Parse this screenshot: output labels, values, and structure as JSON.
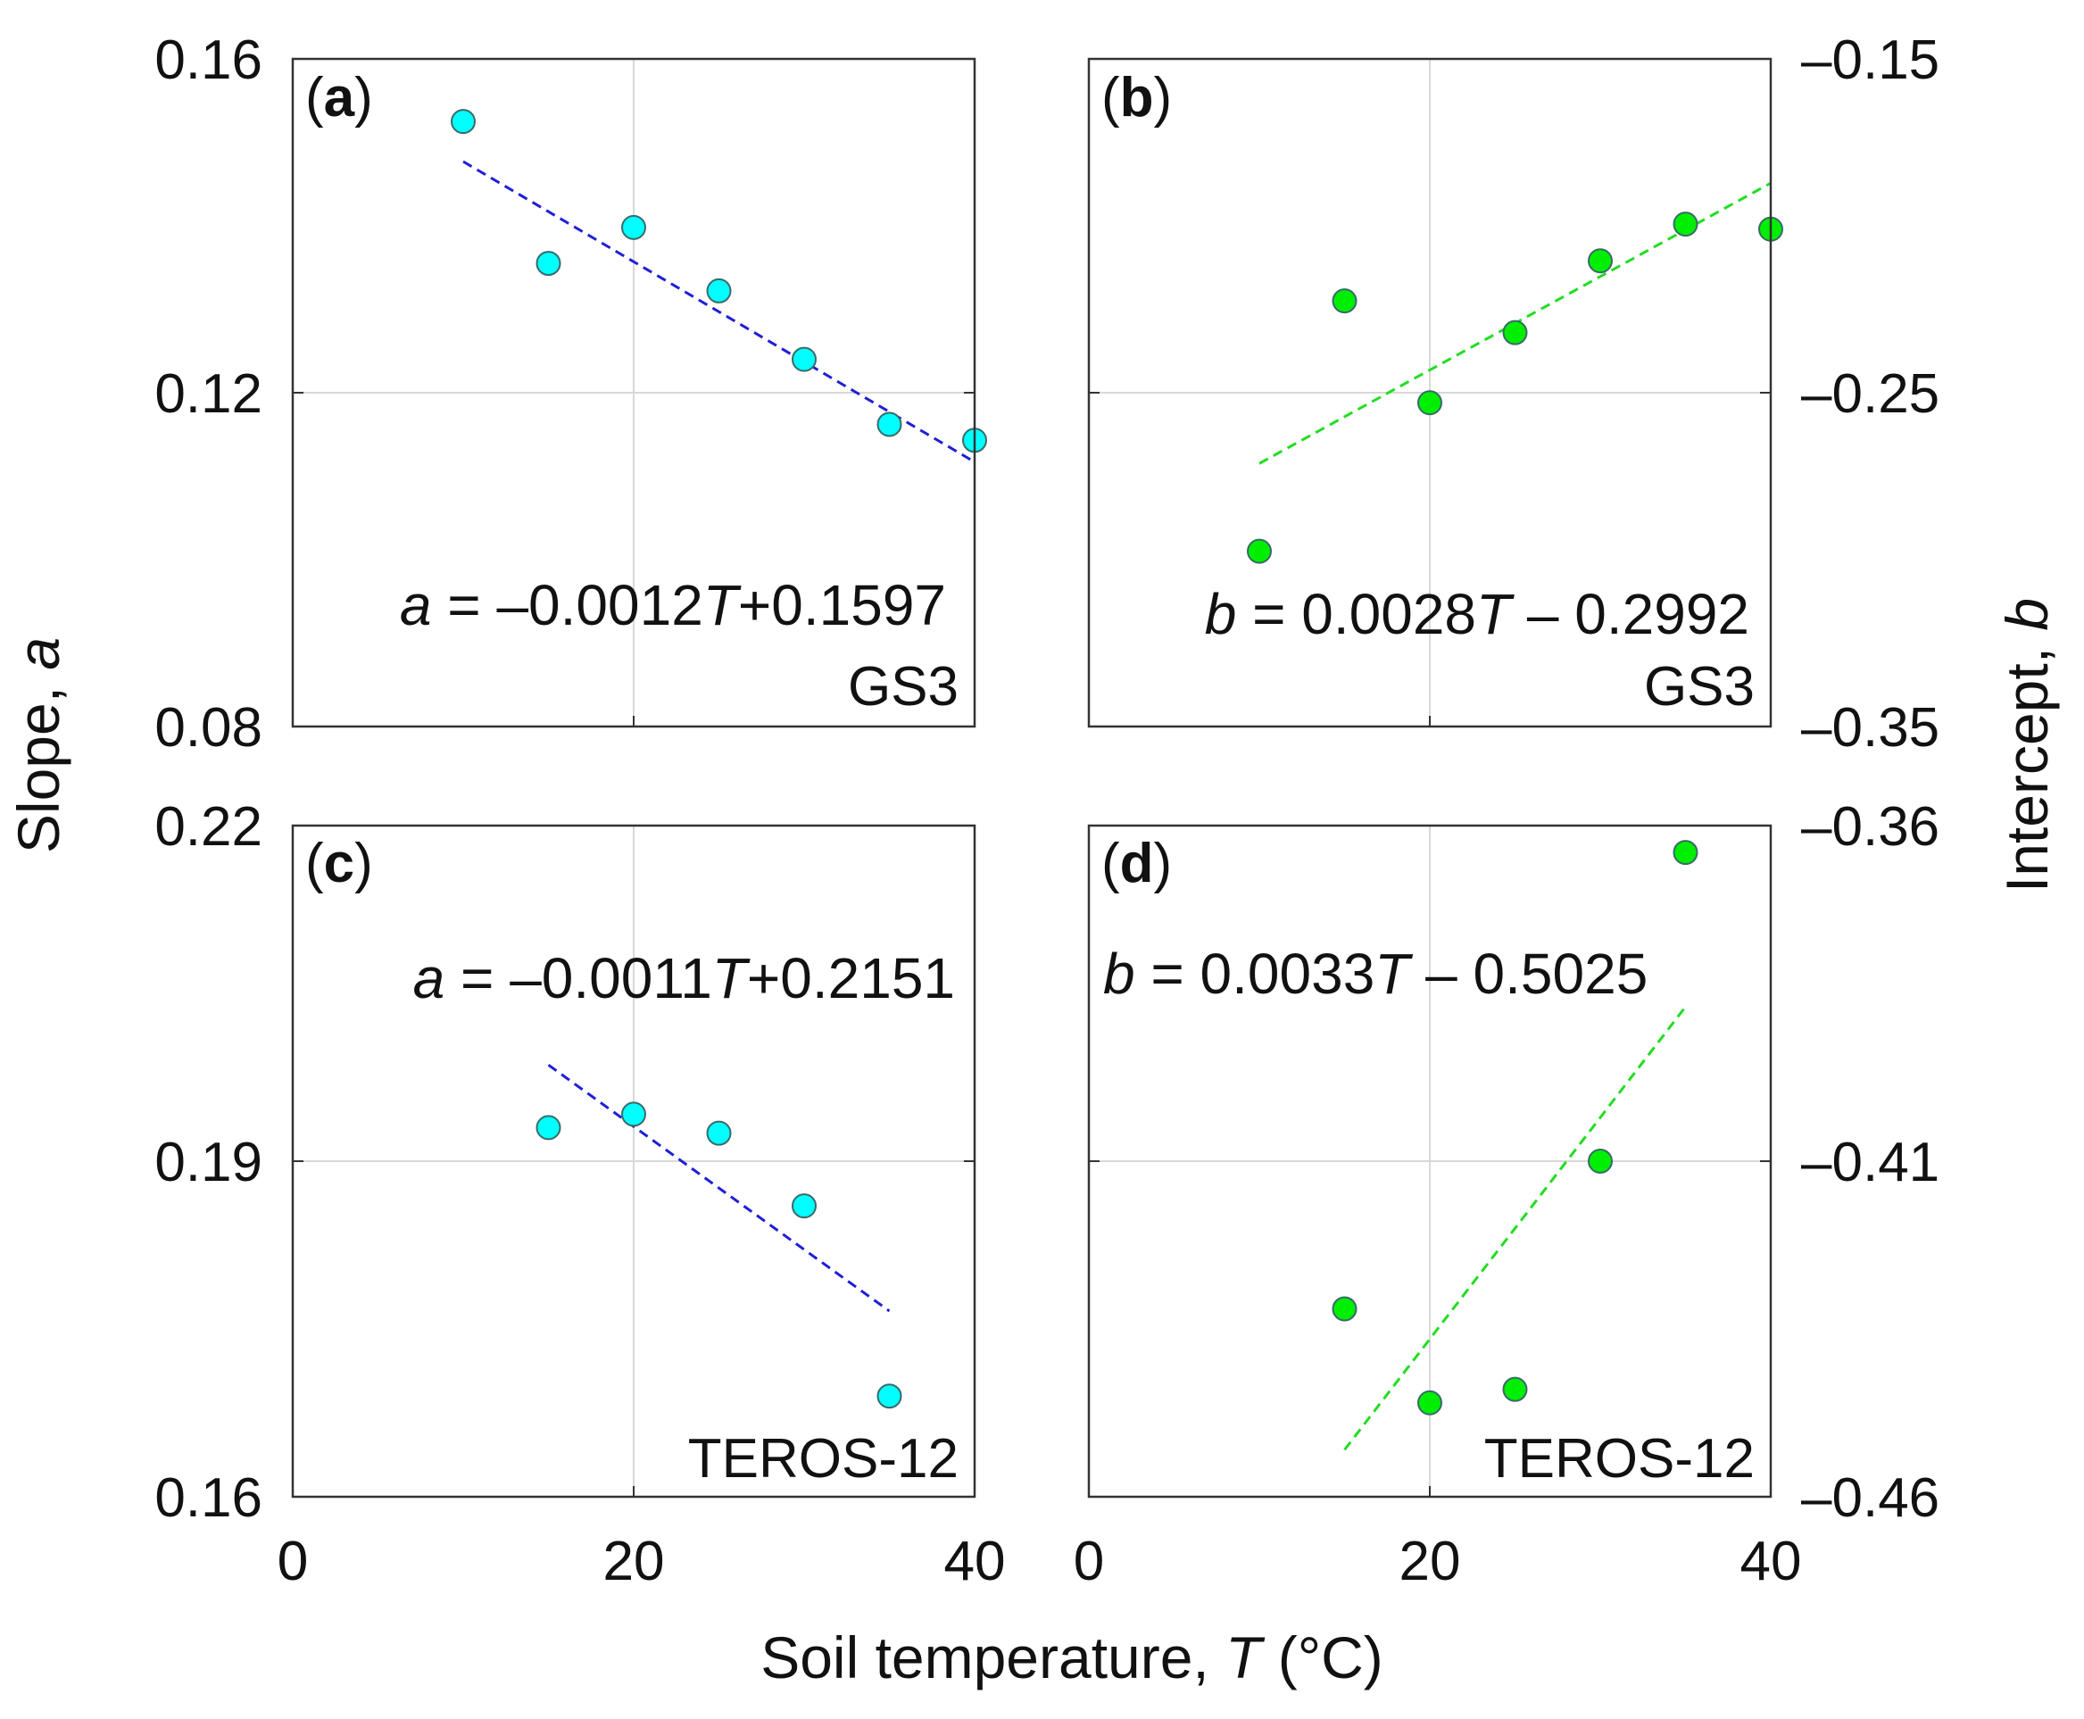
{
  "colors": {
    "slope_marker": "#00ffff",
    "intercept_marker": "#00ee00",
    "slope_fit_line": "#1f1fd8",
    "intercept_fit_line": "#22dd22",
    "marker_edge": "#3a6a6a",
    "axes": "#333333",
    "grid": "#d8d8d8"
  },
  "figure": {
    "xlabel_prefix": "Soil temperature, ",
    "xlabel_var": "T",
    "xlabel_suffix": " (°C)",
    "ylabel_left_prefix": "Slope, ",
    "ylabel_left_var": "a",
    "ylabel_right_prefix": "Intercept, ",
    "ylabel_right_var": "b"
  },
  "chart_data": [
    {
      "type": "scatter",
      "panel": "(a)",
      "panel_letter": "a",
      "sensor": "GS3",
      "equation": {
        "var": "a",
        "pre": " = –0.0012",
        "t": "T",
        "post": "+0.1597"
      },
      "xlim": [
        0,
        40
      ],
      "ylim": [
        0.08,
        0.16
      ],
      "xticks": [
        0,
        20,
        40
      ],
      "xtick_labels": [
        "0",
        "20",
        "40"
      ],
      "yticks": [
        0.08,
        0.12,
        0.16
      ],
      "ytick_labels": [
        "0.08",
        "0.12",
        "0.16"
      ],
      "ytick_side": "left",
      "grid": true,
      "x": [
        10,
        15,
        20,
        25,
        30,
        35,
        40
      ],
      "y": [
        0.1525,
        0.1355,
        0.1398,
        0.1322,
        0.124,
        0.1162,
        0.1143
      ],
      "fit": {
        "slope": -0.0012,
        "intercept": 0.1597,
        "x_range": [
          10,
          40
        ]
      }
    },
    {
      "type": "scatter",
      "panel": "(b)",
      "panel_letter": "b",
      "sensor": "GS3",
      "equation": {
        "var": "b",
        "pre": " = 0.0028",
        "t": "T",
        "post": " – 0.2992"
      },
      "xlim": [
        0,
        40
      ],
      "ylim": [
        -0.35,
        -0.15
      ],
      "xticks": [
        0,
        20,
        40
      ],
      "xtick_labels": [
        "",
        "",
        ""
      ],
      "yticks": [
        -0.35,
        -0.25,
        -0.15
      ],
      "ytick_labels": [
        "–0.35",
        "–0.25",
        "–0.15"
      ],
      "ytick_side": "right",
      "grid": true,
      "x": [
        10,
        15,
        20,
        25,
        30,
        35,
        40
      ],
      "y": [
        -0.2975,
        -0.2225,
        -0.253,
        -0.232,
        -0.2105,
        -0.1995,
        -0.201
      ],
      "fit": {
        "slope": 0.0028,
        "intercept": -0.2992,
        "x_range": [
          10,
          40
        ]
      }
    },
    {
      "type": "scatter",
      "panel": "(c)",
      "panel_letter": "c",
      "sensor": "TEROS-12",
      "equation": {
        "var": "a",
        "pre": " = –0.0011",
        "t": "T",
        "post": "+0.2151"
      },
      "xlim": [
        0,
        40
      ],
      "ylim": [
        0.16,
        0.22
      ],
      "xticks": [
        0,
        20,
        40
      ],
      "xtick_labels": [
        "0",
        "20",
        "40"
      ],
      "yticks": [
        0.16,
        0.19,
        0.22
      ],
      "ytick_labels": [
        "0.16",
        "0.19",
        "0.22"
      ],
      "ytick_side": "left",
      "grid": true,
      "x": [
        15,
        20,
        25,
        30,
        35
      ],
      "y": [
        0.193,
        0.1942,
        0.1925,
        0.186,
        0.169
      ],
      "fit": {
        "slope": -0.0011,
        "intercept": 0.2151,
        "x_range": [
          15,
          35
        ]
      }
    },
    {
      "type": "scatter",
      "panel": "(d)",
      "panel_letter": "d",
      "sensor": "TEROS-12",
      "equation": {
        "var": "b",
        "pre": " = 0.0033",
        "t": "T",
        "post": " – 0.5025"
      },
      "xlim": [
        0,
        40
      ],
      "ylim": [
        -0.46,
        -0.36
      ],
      "xticks": [
        0,
        20,
        40
      ],
      "xtick_labels": [
        "0",
        "20",
        "40"
      ],
      "yticks": [
        -0.46,
        -0.41,
        -0.36
      ],
      "ytick_labels": [
        "–0.46",
        "–0.41",
        "–0.36"
      ],
      "ytick_side": "right",
      "grid": true,
      "x": [
        15,
        20,
        25,
        30,
        35
      ],
      "y": [
        -0.432,
        -0.446,
        -0.444,
        -0.41,
        -0.364
      ],
      "fit": {
        "slope": 0.0033,
        "intercept": -0.5025,
        "x_range": [
          15,
          35
        ]
      }
    }
  ]
}
